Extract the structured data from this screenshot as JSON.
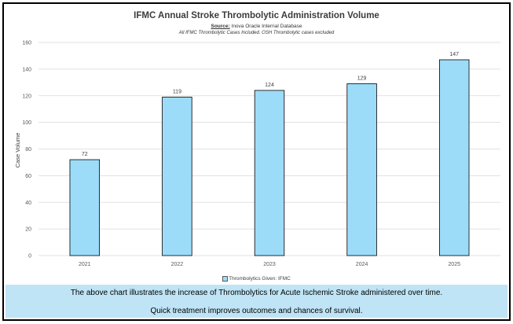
{
  "chart_data": {
    "type": "bar",
    "title": "IFMC Annual Stroke Thrombolytic Administration Volume",
    "source_label": "Source:",
    "source_text": "Inova Oracle Internal Database",
    "note": "All IFMC Thrombolytic Cases Included. OSH Thrombolytic cases excluded",
    "categories": [
      "2021",
      "2022",
      "2023",
      "2024",
      "2025"
    ],
    "series": [
      {
        "name": "Thrombolytics Given: IFMC",
        "values": [
          72,
          119,
          124,
          129,
          147
        ],
        "color": "#9ddcf8",
        "stroke": "#000000"
      }
    ],
    "ylabel": "Case Volume",
    "xlabel": "",
    "ylim": [
      0,
      160
    ],
    "yticks": [
      0,
      20,
      40,
      60,
      80,
      100,
      120,
      140,
      160
    ],
    "grid": true,
    "legend_position": "bottom"
  },
  "caption": {
    "line1": "The above chart illustrates the increase of Thrombolytics for Acute Ischemic Stroke administered over time.",
    "line2": "Quick treatment improves outcomes and chances of survival."
  },
  "colors": {
    "bar_fill": "#9ddcf8",
    "caption_bg": "#bfe4f5",
    "gridline": "#d9d9d9"
  }
}
